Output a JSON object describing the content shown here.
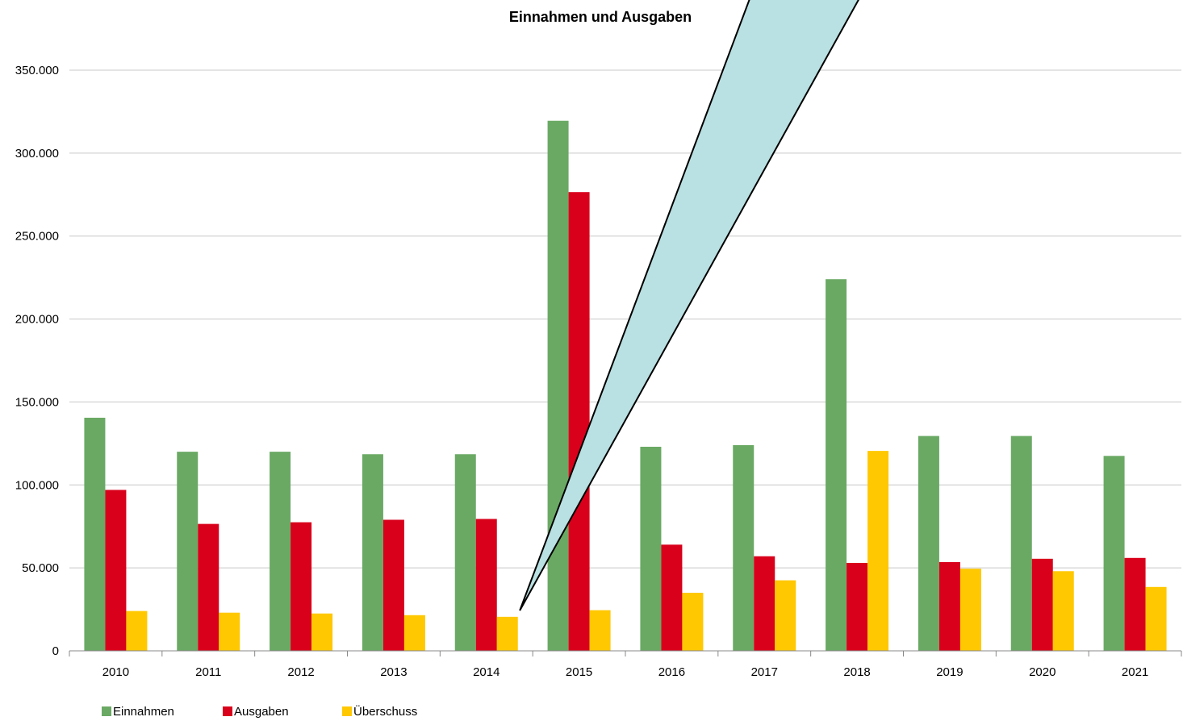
{
  "chart_data": {
    "type": "bar",
    "title": "Einnahmen und Ausgaben",
    "xlabel": "",
    "ylabel": "",
    "categories": [
      "2010",
      "2011",
      "2012",
      "2013",
      "2014",
      "2015",
      "2016",
      "2017",
      "2018",
      "2019",
      "2020",
      "2021"
    ],
    "series": [
      {
        "name": "Einnahmen",
        "color": "#6aa964",
        "values": [
          140500,
          120000,
          120000,
          118500,
          118500,
          319500,
          123000,
          124000,
          224000,
          129500,
          129500,
          117500
        ]
      },
      {
        "name": "Ausgaben",
        "color": "#d9001b",
        "values": [
          97000,
          76500,
          77500,
          79000,
          79500,
          276500,
          64000,
          57000,
          53000,
          53500,
          55500,
          56000
        ]
      },
      {
        "name": "Überschuss",
        "color": "#ffc800",
        "values": [
          24000,
          23000,
          22500,
          21500,
          20500,
          24500,
          35000,
          42500,
          120500,
          49500,
          48000,
          38500
        ]
      }
    ],
    "ylim": [
      0,
      350000
    ],
    "yticks": [
      "0",
      "50.000",
      "100.000",
      "150.000",
      "200.000",
      "250.000",
      "300.000",
      "350.000"
    ],
    "grid": true,
    "legend_position": "bottom-left",
    "annotation": {
      "shape": "callout-wedge",
      "fill": "#b9e0e2",
      "stroke": "#000000",
      "points_to": "2014"
    }
  }
}
